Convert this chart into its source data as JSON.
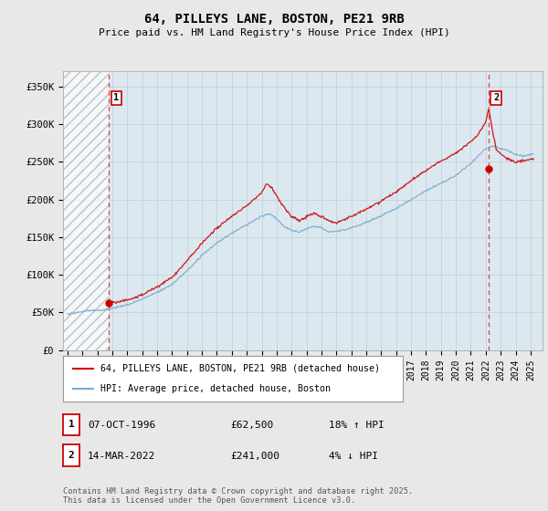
{
  "title": "64, PILLEYS LANE, BOSTON, PE21 9RB",
  "subtitle": "Price paid vs. HM Land Registry's House Price Index (HPI)",
  "bg_color": "#e8e8e8",
  "plot_bg": "#dce8f0",
  "red_line_color": "#cc0000",
  "blue_line_color": "#7aaacc",
  "marker1_x": 1996.77,
  "marker1_y": 62500,
  "marker2_x": 2022.2,
  "marker2_y": 241000,
  "vline1_x": 1996.77,
  "vline2_x": 2022.2,
  "ylim": [
    0,
    370000
  ],
  "yticks": [
    0,
    50000,
    100000,
    150000,
    200000,
    250000,
    300000,
    350000
  ],
  "ytick_labels": [
    "£0",
    "£50K",
    "£100K",
    "£150K",
    "£200K",
    "£250K",
    "£300K",
    "£350K"
  ],
  "xlim_start": 1993.7,
  "xlim_end": 2025.8,
  "x_tick_years": [
    1994,
    1995,
    1996,
    1997,
    1998,
    1999,
    2000,
    2001,
    2002,
    2003,
    2004,
    2005,
    2006,
    2007,
    2008,
    2009,
    2010,
    2011,
    2012,
    2013,
    2014,
    2015,
    2016,
    2017,
    2018,
    2019,
    2020,
    2021,
    2022,
    2023,
    2024,
    2025
  ],
  "legend_label_red": "64, PILLEYS LANE, BOSTON, PE21 9RB (detached house)",
  "legend_label_blue": "HPI: Average price, detached house, Boston",
  "table_rows": [
    {
      "num": "1",
      "date": "07-OCT-1996",
      "price": "£62,500",
      "hpi": "18% ↑ HPI"
    },
    {
      "num": "2",
      "date": "14-MAR-2022",
      "price": "£241,000",
      "hpi": "4% ↓ HPI"
    }
  ],
  "footnote": "Contains HM Land Registry data © Crown copyright and database right 2025.\nThis data is licensed under the Open Government Licence v3.0."
}
